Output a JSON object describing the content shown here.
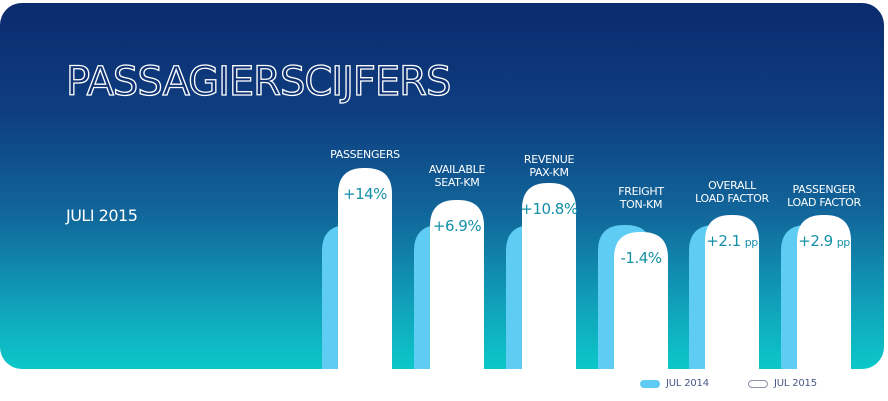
{
  "header": {
    "title": "PASSAGIERSCIJFERS",
    "period": "JULI 2015"
  },
  "colors": {
    "prev_bar": "#5fcdf3",
    "curr_bar": "#ffffff",
    "value_text": "#1490a8"
  },
  "chart_data": {
    "type": "bar",
    "title": "PASSAGIERSCIJFERS",
    "subtitle": "JULI 2015",
    "categories": [
      [
        "PASSENGERS"
      ],
      [
        "AVAILABLE",
        "SEAT-KM"
      ],
      [
        "REVENUE",
        "PAX-KM"
      ],
      [
        "FREIGHT",
        "TON-KM"
      ],
      [
        "OVERALL",
        "LOAD FACTOR"
      ],
      [
        "PASSENGER",
        "LOAD FACTOR"
      ]
    ],
    "series": [
      {
        "name": "JUL 2014"
      },
      {
        "name": "JUL 2015",
        "labels": [
          "+14%",
          "+6.9%",
          "+10.8%",
          "-1.4%",
          "+2.1",
          "+2.9"
        ],
        "units": [
          "",
          "",
          "",
          "",
          "pp",
          "pp"
        ]
      }
    ],
    "legend_position": "bottom-right",
    "grid": false
  }
}
